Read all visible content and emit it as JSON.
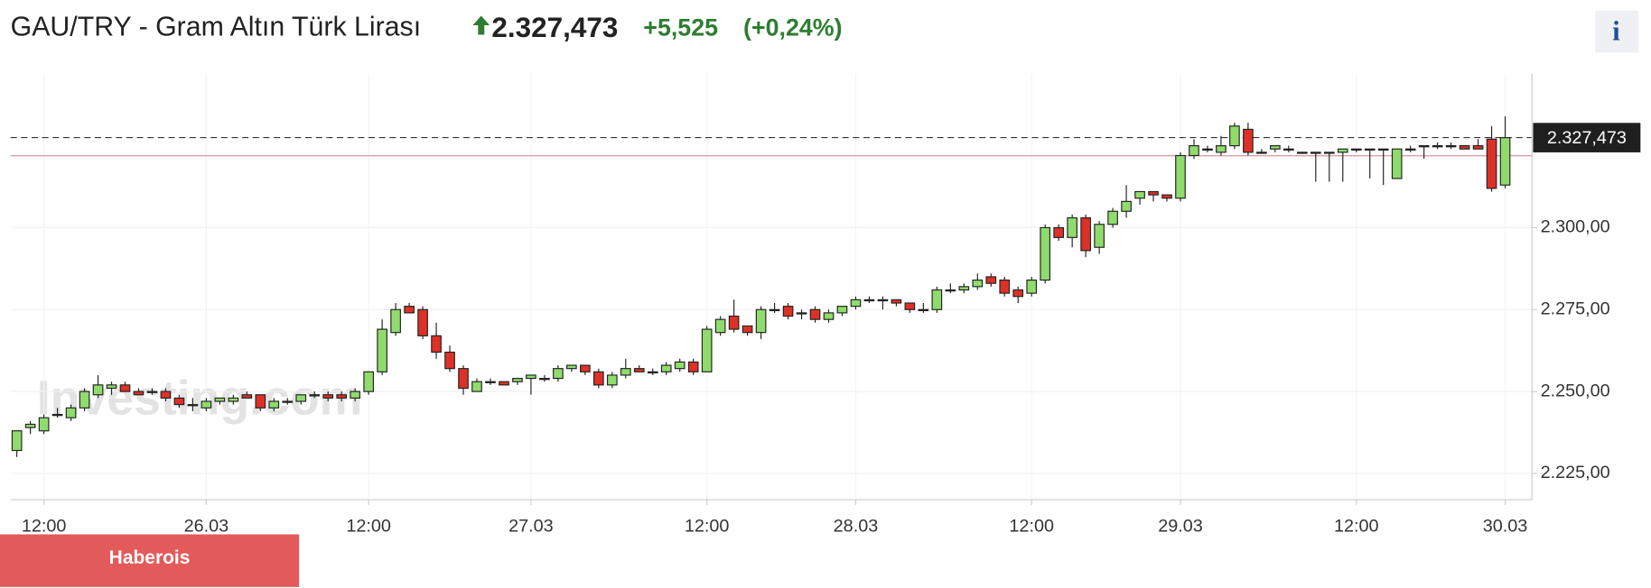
{
  "header": {
    "title": "GAU/TRY - Gram Altın Türk Lirası",
    "price": "2.327,473",
    "change": "+5,525",
    "change_percent": "(+0,24%)",
    "info": "i"
  },
  "badge": "Haberois",
  "watermark": "Investing.com",
  "chart_data": {
    "type": "candlestick",
    "categories": [
      null,
      null,
      "12:00",
      null,
      null,
      null,
      null,
      null,
      null,
      null,
      null,
      null,
      null,
      null,
      "26.03",
      null,
      null,
      null,
      null,
      null,
      null,
      null,
      null,
      null,
      null,
      null,
      "12:00",
      null,
      null,
      null,
      null,
      null,
      null,
      null,
      null,
      null,
      null,
      null,
      "27.03",
      null,
      null,
      null,
      null,
      null,
      null,
      null,
      null,
      null,
      null,
      null,
      null,
      "12:00",
      null,
      null,
      null,
      null,
      null,
      null,
      null,
      null,
      null,
      null,
      "28.03",
      null,
      null,
      null,
      null,
      null,
      null,
      null,
      null,
      null,
      null,
      null,
      null,
      "12:00",
      null,
      null,
      null,
      null,
      null,
      null,
      null,
      null,
      null,
      null,
      "29.03",
      null,
      null,
      null,
      null,
      null,
      null,
      null,
      null,
      null,
      null,
      null,
      null,
      "12:00",
      null,
      null,
      null,
      null,
      null,
      null,
      null,
      null,
      null,
      null,
      "30.03"
    ],
    "open": [
      2232,
      2239,
      2238,
      2243,
      2242,
      2245,
      2249,
      2251,
      2252,
      2250,
      2250,
      2250,
      2248,
      2246,
      2245,
      2247,
      2247,
      2249,
      2249,
      2245,
      2247,
      2247,
      2249,
      2249,
      2249,
      2248,
      2250,
      2256,
      2268,
      2276,
      2275,
      2267,
      2262,
      2257,
      2250,
      2253,
      2253,
      2253,
      2254,
      2254,
      2254,
      2257,
      2258,
      2256,
      2252,
      2255,
      2257,
      2256,
      2256,
      2257,
      2259,
      2256,
      2268,
      2273,
      2270,
      2268,
      2275,
      2276,
      2274,
      2275,
      2272,
      2274,
      2276,
      2278,
      2278,
      2278,
      2277,
      2275,
      2275,
      2281,
      2281,
      2282,
      2285,
      2284,
      2281,
      2280,
      2284,
      2300,
      2297,
      2303,
      2294,
      2301,
      2305,
      2309,
      2311,
      2310,
      2309,
      2322,
      2324,
      2323,
      2325,
      2330,
      2323,
      2324,
      2324,
      2323,
      2323,
      2323,
      2323,
      2324,
      2324,
      2324,
      2315,
      2324,
      2325,
      2325,
      2325,
      2325,
      2325,
      2327,
      2313
    ],
    "high": [
      2238,
      2241,
      2243,
      2245,
      2246,
      2251,
      2255,
      2253,
      2253,
      2251,
      2251,
      2251,
      2249,
      2248,
      2248,
      2248,
      2249,
      2250,
      2249,
      2248,
      2248,
      2248,
      2250,
      2250,
      2250,
      2251,
      2255,
      2272,
      2277,
      2277,
      2276,
      2271,
      2264,
      2258,
      2254,
      2254,
      2253,
      2254,
      2255,
      2255,
      2258,
      2258,
      2258,
      2257,
      2256,
      2260,
      2258,
      2257,
      2259,
      2260,
      2260,
      2270,
      2273,
      2278,
      2270,
      2276,
      2277,
      2277,
      2275,
      2276,
      2275,
      2276,
      2279,
      2279,
      2279,
      2278,
      2277,
      2277,
      2282,
      2283,
      2283,
      2286,
      2286,
      2285,
      2282,
      2285,
      2301,
      2301,
      2304,
      2304,
      2302,
      2306,
      2313,
      2311,
      2311,
      2310,
      2323,
      2327,
      2325,
      2328,
      2332,
      2332,
      2324,
      2325,
      2325,
      2323,
      2323,
      2323,
      2324,
      2324,
      2324,
      2324,
      2324,
      2325,
      2325,
      2326,
      2326,
      2325,
      2327,
      2331,
      2334
    ],
    "low": [
      2230,
      2237,
      2237,
      2242,
      2241,
      2244,
      2248,
      2249,
      2250,
      2249,
      2249,
      2247,
      2245,
      2244,
      2244,
      2246,
      2246,
      2248,
      2244,
      2244,
      2246,
      2246,
      2248,
      2247,
      2247,
      2247,
      2249,
      2255,
      2267,
      2274,
      2266,
      2260,
      2256,
      2249,
      2250,
      2252,
      2252,
      2252,
      2249,
      2253,
      2253,
      2256,
      2255,
      2251,
      2251,
      2254,
      2256,
      2255,
      2255,
      2256,
      2255,
      2256,
      2267,
      2268,
      2267,
      2266,
      2274,
      2272,
      2272,
      2271,
      2271,
      2273,
      2275,
      2277,
      2275,
      2276,
      2274,
      2274,
      2274,
      2280,
      2280,
      2281,
      2282,
      2279,
      2277,
      2279,
      2283,
      2296,
      2294,
      2291,
      2292,
      2300,
      2303,
      2307,
      2308,
      2308,
      2308,
      2321,
      2323,
      2322,
      2324,
      2322,
      2323,
      2323,
      2323,
      2323,
      2314,
      2314,
      2314,
      2323,
      2315,
      2313,
      2315,
      2323,
      2321,
      2324,
      2324,
      2324,
      2324,
      2311,
      2312
    ],
    "close": [
      2238,
      2240,
      2242,
      2243,
      2245,
      2250,
      2252,
      2252,
      2250,
      2249,
      2250,
      2248,
      2246,
      2246,
      2247,
      2248,
      2248,
      2248,
      2245,
      2247,
      2247,
      2249,
      2249,
      2248,
      2248,
      2250,
      2256,
      2269,
      2275,
      2274,
      2267,
      2262,
      2257,
      2251,
      2253,
      2253,
      2252,
      2254,
      2255,
      2254,
      2257,
      2258,
      2256,
      2252,
      2255,
      2257,
      2256,
      2256,
      2258,
      2259,
      2256,
      2269,
      2272,
      2269,
      2268,
      2275,
      2275,
      2273,
      2274,
      2272,
      2274,
      2276,
      2278,
      2278,
      2278,
      2277,
      2275,
      2275,
      2281,
      2281,
      2282,
      2284,
      2283,
      2280,
      2279,
      2284,
      2300,
      2297,
      2303,
      2293,
      2301,
      2305,
      2308,
      2311,
      2310,
      2309,
      2322,
      2325,
      2324,
      2325,
      2331,
      2323,
      2323,
      2325,
      2324,
      2323,
      2323,
      2323,
      2324,
      2324,
      2324,
      2324,
      2324,
      2324,
      2325,
      2325,
      2325,
      2324,
      2324,
      2312,
      2327.473
    ],
    "up_color": "#8fdc6c",
    "down_color": "#dd3127",
    "ylim": [
      2217,
      2347
    ],
    "yticks": [
      {
        "value": 2225,
        "label": "2.225,00"
      },
      {
        "value": 2250,
        "label": "2.250,00"
      },
      {
        "value": 2275,
        "label": "2.275,00"
      },
      {
        "value": 2300,
        "label": "2.300,00"
      }
    ],
    "last_price": {
      "value": 2327.473,
      "label": "2.327,473"
    },
    "previous_close": 2321.948,
    "grid": true
  }
}
